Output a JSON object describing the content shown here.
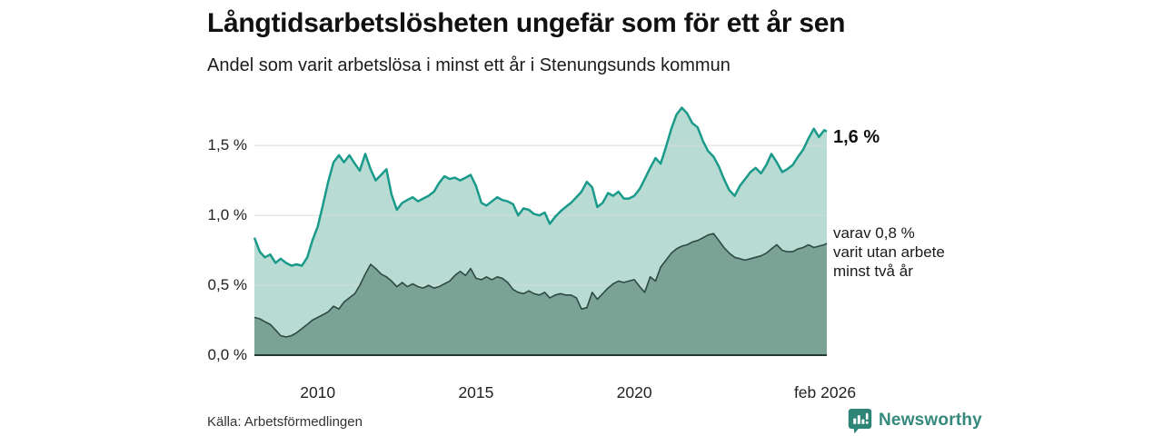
{
  "header": {
    "title": "Långtidsarbetslösheten ungefär som för ett år sen",
    "subtitle": "Andel som varit arbetslösa i minst ett år i Stenungsunds kommun"
  },
  "annotations": {
    "latest_total": "1,6 %",
    "latest_two_year_lines": [
      "varav 0,8 %",
      "varit utan arbete",
      "minst två år"
    ]
  },
  "footer": {
    "source": "Källa: Arbetsförmedlingen",
    "brand": "Newsworthy"
  },
  "colors": {
    "total_line": "#1a9a8a",
    "total_fill": "#b8dcd4",
    "two_year_line": "#2e4a43",
    "two_year_fill": "#7aa295",
    "gridline": "#d8d8d8",
    "baseline": "#233832",
    "brand_teal": "#35897c",
    "brand_icon": "#2e8577"
  },
  "chart_data": {
    "type": "area",
    "title": "Långtidsarbetslösheten ungefär som för ett år sen",
    "subtitle": "Andel som varit arbetslösa i minst ett år i Stenungsunds kommun",
    "xlabel": "",
    "ylabel": "",
    "xlim": [
      2008,
      2026.08
    ],
    "ylim": [
      0,
      1.8
    ],
    "grid": "horizontal",
    "legend_position": "right-of-line-end",
    "x_ticks": [
      {
        "value": 2010,
        "label": "2010"
      },
      {
        "value": 2015,
        "label": "2015"
      },
      {
        "value": 2020,
        "label": "2020"
      },
      {
        "value": 2026.08,
        "label": "feb 2026"
      }
    ],
    "y_ticks": [
      {
        "value": 0,
        "label": "0,0 %"
      },
      {
        "value": 0.5,
        "label": "0,5 %"
      },
      {
        "value": 1.0,
        "label": "1,0 %"
      },
      {
        "value": 1.5,
        "label": "1,5 %"
      }
    ],
    "x": [
      2008,
      2008.17,
      2008.33,
      2008.5,
      2008.67,
      2008.83,
      2009,
      2009.17,
      2009.33,
      2009.5,
      2009.67,
      2009.83,
      2010,
      2010.17,
      2010.33,
      2010.5,
      2010.67,
      2010.83,
      2011,
      2011.17,
      2011.33,
      2011.5,
      2011.67,
      2011.83,
      2012,
      2012.17,
      2012.33,
      2012.5,
      2012.67,
      2012.83,
      2013,
      2013.17,
      2013.33,
      2013.5,
      2013.67,
      2013.83,
      2014,
      2014.17,
      2014.33,
      2014.5,
      2014.67,
      2014.83,
      2015,
      2015.17,
      2015.33,
      2015.5,
      2015.67,
      2015.83,
      2016,
      2016.17,
      2016.33,
      2016.5,
      2016.67,
      2016.83,
      2017,
      2017.17,
      2017.33,
      2017.5,
      2017.67,
      2017.83,
      2018,
      2018.17,
      2018.33,
      2018.5,
      2018.67,
      2018.83,
      2019,
      2019.17,
      2019.33,
      2019.5,
      2019.67,
      2019.83,
      2020,
      2020.17,
      2020.33,
      2020.5,
      2020.67,
      2020.83,
      2021,
      2021.17,
      2021.33,
      2021.5,
      2021.67,
      2021.83,
      2022,
      2022.17,
      2022.33,
      2022.5,
      2022.67,
      2022.83,
      2023,
      2023.17,
      2023.33,
      2023.5,
      2023.67,
      2023.83,
      2024,
      2024.17,
      2024.33,
      2024.5,
      2024.67,
      2024.83,
      2025,
      2025.17,
      2025.33,
      2025.5,
      2025.67,
      2025.83,
      2026,
      2026.08
    ],
    "series": [
      {
        "name": "Andel som varit arbetslösa i minst ett år",
        "end_label": "1,6 %",
        "end_value": 1.6,
        "values": [
          0.84,
          0.74,
          0.7,
          0.72,
          0.66,
          0.69,
          0.66,
          0.64,
          0.65,
          0.64,
          0.7,
          0.82,
          0.92,
          1.08,
          1.24,
          1.38,
          1.43,
          1.38,
          1.43,
          1.37,
          1.32,
          1.44,
          1.33,
          1.25,
          1.29,
          1.33,
          1.15,
          1.04,
          1.09,
          1.11,
          1.13,
          1.1,
          1.12,
          1.14,
          1.17,
          1.23,
          1.28,
          1.26,
          1.27,
          1.25,
          1.27,
          1.29,
          1.21,
          1.09,
          1.07,
          1.1,
          1.13,
          1.11,
          1.1,
          1.08,
          1.0,
          1.05,
          1.04,
          1.01,
          1.0,
          1.02,
          0.94,
          0.99,
          1.03,
          1.06,
          1.09,
          1.13,
          1.17,
          1.24,
          1.2,
          1.06,
          1.09,
          1.16,
          1.14,
          1.17,
          1.12,
          1.12,
          1.14,
          1.19,
          1.26,
          1.34,
          1.41,
          1.37,
          1.49,
          1.62,
          1.72,
          1.77,
          1.73,
          1.66,
          1.63,
          1.53,
          1.46,
          1.42,
          1.35,
          1.26,
          1.18,
          1.14,
          1.21,
          1.26,
          1.31,
          1.34,
          1.3,
          1.36,
          1.44,
          1.38,
          1.31,
          1.33,
          1.36,
          1.42,
          1.47,
          1.55,
          1.62,
          1.56,
          1.61,
          1.6
        ]
      },
      {
        "name": "varav utan arbete minst två år",
        "end_label": "varav 0,8 % varit utan arbete minst två år",
        "end_value": 0.8,
        "values": [
          0.27,
          0.26,
          0.24,
          0.22,
          0.18,
          0.14,
          0.13,
          0.14,
          0.16,
          0.19,
          0.22,
          0.25,
          0.27,
          0.29,
          0.31,
          0.35,
          0.33,
          0.38,
          0.41,
          0.44,
          0.5,
          0.58,
          0.65,
          0.62,
          0.58,
          0.56,
          0.53,
          0.49,
          0.52,
          0.49,
          0.51,
          0.49,
          0.48,
          0.5,
          0.48,
          0.49,
          0.51,
          0.53,
          0.57,
          0.6,
          0.57,
          0.62,
          0.55,
          0.54,
          0.56,
          0.54,
          0.56,
          0.55,
          0.52,
          0.47,
          0.45,
          0.44,
          0.46,
          0.44,
          0.43,
          0.45,
          0.41,
          0.43,
          0.44,
          0.43,
          0.43,
          0.41,
          0.33,
          0.34,
          0.45,
          0.4,
          0.44,
          0.48,
          0.51,
          0.53,
          0.52,
          0.53,
          0.54,
          0.49,
          0.45,
          0.56,
          0.53,
          0.63,
          0.68,
          0.73,
          0.76,
          0.78,
          0.79,
          0.81,
          0.82,
          0.84,
          0.86,
          0.87,
          0.82,
          0.77,
          0.73,
          0.7,
          0.69,
          0.68,
          0.69,
          0.7,
          0.71,
          0.73,
          0.76,
          0.79,
          0.75,
          0.74,
          0.74,
          0.76,
          0.77,
          0.79,
          0.77,
          0.78,
          0.79,
          0.8
        ]
      }
    ]
  }
}
